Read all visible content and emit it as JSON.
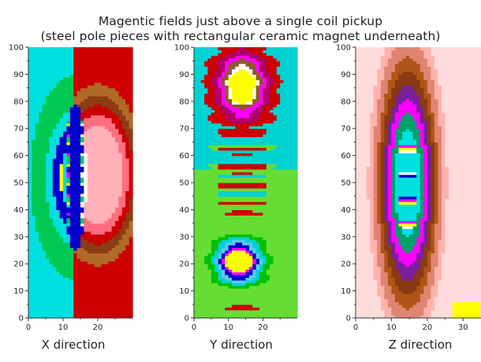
{
  "chart_data": {
    "title": "Magentic fields just above a single coil pickup",
    "subtitle": "(steel pole pieces with rectangular ceramic magnet underneath)",
    "type": "heatmap",
    "panels": [
      {
        "xlabel": "X direction",
        "xlim": [
          0,
          30
        ],
        "ylim": [
          0,
          100
        ],
        "xticks": [
          0,
          10,
          20
        ],
        "yticks": [
          0,
          10,
          20,
          30,
          40,
          50,
          60,
          70,
          80,
          90,
          100
        ],
        "colors": [
          "#fffde6",
          "#ffb0b8",
          "#ff6e80",
          "#cc0000",
          "#8b3c14",
          "#b06a28",
          "#00c853",
          "#00e0e0",
          "#0000cc",
          "#ffff00",
          "#ff00ff",
          "#ffffff"
        ]
      },
      {
        "xlabel": "Y direction",
        "xlim": [
          0,
          30
        ],
        "ylim": [
          0,
          100
        ],
        "xticks": [
          0,
          10,
          20
        ],
        "yticks": [
          0,
          10,
          20,
          30,
          40,
          50,
          60,
          70,
          80,
          90,
          100
        ],
        "colors": [
          "#00c000",
          "#66dd33",
          "#00d2d2",
          "#5cc8f0",
          "#cc0000",
          "#b0006a",
          "#ff00ff",
          "#8b5a2b",
          "#ffffff",
          "#ffff00",
          "#0000cc"
        ]
      },
      {
        "xlabel": "Z direction",
        "xlim": [
          0,
          35
        ],
        "ylim": [
          0,
          100
        ],
        "xticks": [
          0,
          10,
          20,
          30
        ],
        "yticks": [
          0,
          10,
          20,
          30,
          40,
          50,
          60,
          70,
          80,
          90,
          100
        ],
        "colors": [
          "#ffdcdc",
          "#ffb3ad",
          "#e08572",
          "#b05418",
          "#8a3a10",
          "#7a1f9e",
          "#ff00ff",
          "#00a06a",
          "#00cc44",
          "#00e0e0",
          "#0000cc",
          "#ffff00",
          "#ffffff"
        ]
      }
    ]
  }
}
